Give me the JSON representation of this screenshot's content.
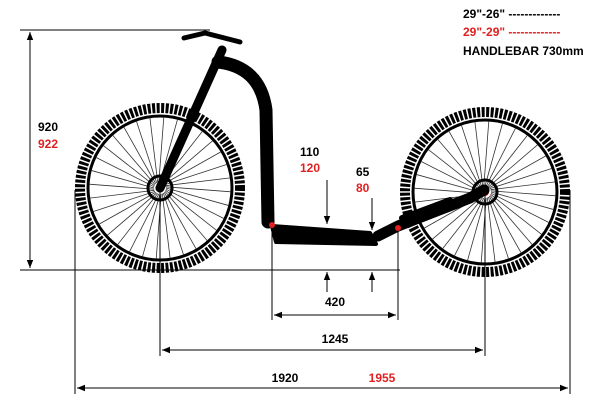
{
  "legend": [
    {
      "label": "29\"-26\" -------------"
    },
    {
      "label": "29\"-29\" -------------"
    }
  ],
  "handlebar": "HANDLEBAR 730mm",
  "dimensions": {
    "height": {
      "black": "920",
      "red": "922"
    },
    "deck_height": {
      "black": "110",
      "red": "120"
    },
    "ground_clearance": {
      "black": "65",
      "red": "80"
    },
    "deck_length": "420",
    "wheelbase": "1245",
    "total_length": {
      "black": "1920",
      "red": "1955"
    }
  }
}
